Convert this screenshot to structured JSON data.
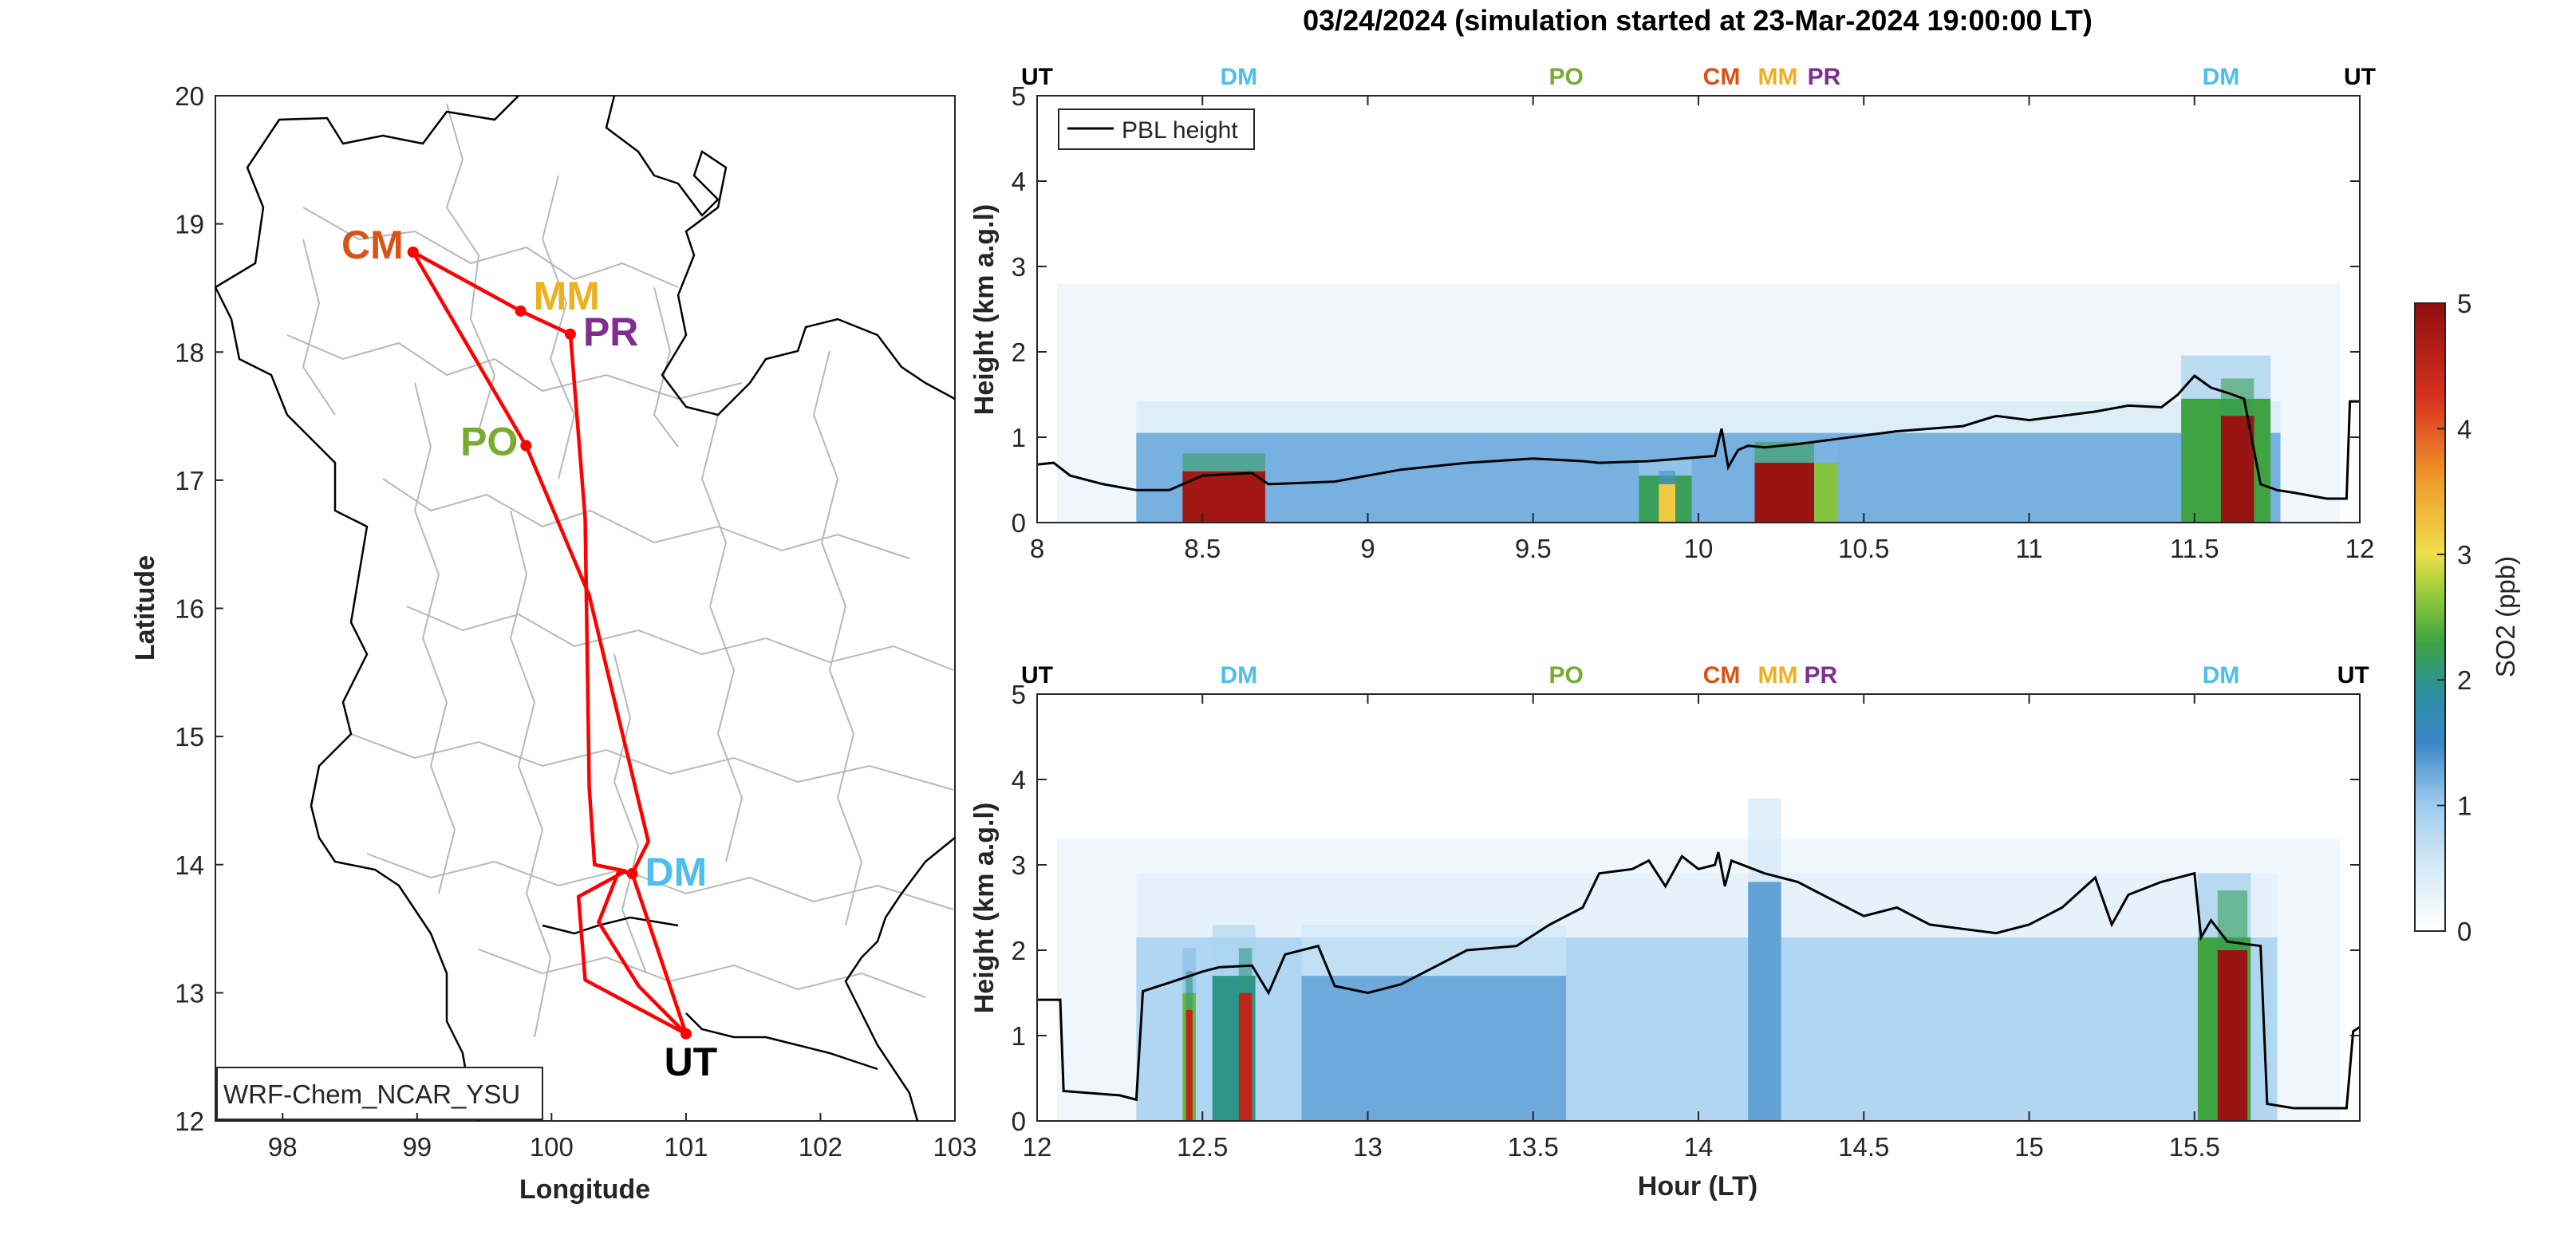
{
  "figure_title": "03/24/2024 (simulation started at 23-Mar-2024 19:00:00 LT)",
  "colors": {
    "CM": "#D95319",
    "MM": "#EDB120",
    "PR": "#7E2F8E",
    "PO": "#77AC30",
    "DM": "#4DBEEE",
    "UT": "#000000",
    "route": "#FF0000",
    "pbl": "#000000"
  },
  "chart_data": [
    {
      "type": "line",
      "panel": "map",
      "xlabel": "Longitude",
      "ylabel": "Latitude",
      "xlim": [
        97.5,
        103
      ],
      "ylim": [
        12,
        20
      ],
      "xticks": [
        98,
        99,
        100,
        101,
        102,
        103
      ],
      "yticks": [
        12,
        13,
        14,
        15,
        16,
        17,
        18,
        19,
        20
      ],
      "model_label": "WRF-Chem_NCAR_YSU",
      "stations": [
        {
          "code": "CM",
          "lon": 98.97,
          "lat": 18.78
        },
        {
          "code": "MM",
          "lon": 99.77,
          "lat": 18.32
        },
        {
          "code": "PR",
          "lon": 100.14,
          "lat": 18.14
        },
        {
          "code": "PO",
          "lon": 99.81,
          "lat": 17.27
        },
        {
          "code": "DM",
          "lon": 100.6,
          "lat": 13.93
        },
        {
          "code": "UT",
          "lon": 101.0,
          "lat": 12.68
        }
      ],
      "route": [
        [
          101.0,
          12.68
        ],
        [
          100.6,
          13.93
        ],
        [
          100.72,
          14.18
        ],
        [
          100.28,
          16.1
        ],
        [
          99.81,
          17.27
        ],
        [
          98.97,
          18.78
        ],
        [
          99.77,
          18.32
        ],
        [
          100.14,
          18.14
        ],
        [
          100.25,
          16.7
        ],
        [
          100.28,
          14.6
        ],
        [
          100.32,
          14.0
        ],
        [
          100.55,
          13.95
        ],
        [
          100.2,
          13.75
        ],
        [
          100.25,
          13.1
        ],
        [
          101.0,
          12.68
        ],
        [
          100.65,
          13.05
        ],
        [
          100.35,
          13.55
        ],
        [
          100.5,
          13.95
        ],
        [
          100.6,
          13.93
        ]
      ]
    },
    {
      "type": "heatmap",
      "panel": "top",
      "xlabel": "",
      "ylabel": "Height (km a.g.l)",
      "xlim": [
        8,
        12
      ],
      "ylim": [
        0,
        5
      ],
      "xticks": [
        8,
        8.5,
        9,
        9.5,
        10,
        10.5,
        11,
        11.5,
        12
      ],
      "yticks": [
        0,
        1,
        2,
        3,
        4,
        5
      ],
      "legend": "PBL height",
      "stop_labels": [
        {
          "code": "UT",
          "x": 8.0
        },
        {
          "code": "DM",
          "x": 8.61
        },
        {
          "code": "PO",
          "x": 9.6
        },
        {
          "code": "CM",
          "x": 10.07
        },
        {
          "code": "MM",
          "x": 10.24
        },
        {
          "code": "PR",
          "x": 10.38
        },
        {
          "code": "DM",
          "x": 11.58
        },
        {
          "code": "UT",
          "x": 12.0
        }
      ],
      "so2_blocks": [
        {
          "x0": 8.3,
          "x1": 11.76,
          "h": 1.05,
          "v": 1.2
        },
        {
          "x0": 8.44,
          "x1": 8.69,
          "h": 0.6,
          "v": 4.8
        },
        {
          "x0": 9.82,
          "x1": 9.98,
          "h": 0.55,
          "v": 2.2
        },
        {
          "x0": 9.88,
          "x1": 9.93,
          "h": 0.45,
          "v": 3.2
        },
        {
          "x0": 10.17,
          "x1": 10.35,
          "h": 0.7,
          "v": 4.9
        },
        {
          "x0": 10.35,
          "x1": 10.42,
          "h": 0.7,
          "v": 2.6
        },
        {
          "x0": 11.46,
          "x1": 11.73,
          "h": 1.45,
          "v": 2.3
        },
        {
          "x0": 11.58,
          "x1": 11.68,
          "h": 1.25,
          "v": 4.9
        }
      ],
      "pbl": {
        "x": [
          8.0,
          8.05,
          8.1,
          8.2,
          8.3,
          8.4,
          8.5,
          8.65,
          8.7,
          8.9,
          9.1,
          9.3,
          9.5,
          9.65,
          9.7,
          9.85,
          9.95,
          10.05,
          10.07,
          10.09,
          10.12,
          10.15,
          10.2,
          10.3,
          10.4,
          10.5,
          10.6,
          10.8,
          10.9,
          11.0,
          11.2,
          11.3,
          11.4,
          11.45,
          11.5,
          11.55,
          11.6,
          11.65,
          11.7,
          11.75,
          11.8,
          11.9,
          11.96,
          11.97,
          12.0
        ],
        "y": [
          0.68,
          0.7,
          0.55,
          0.45,
          0.38,
          0.38,
          0.55,
          0.58,
          0.45,
          0.48,
          0.62,
          0.7,
          0.75,
          0.72,
          0.7,
          0.72,
          0.75,
          0.78,
          1.1,
          0.65,
          0.85,
          0.9,
          0.88,
          0.92,
          0.97,
          1.02,
          1.07,
          1.13,
          1.25,
          1.2,
          1.3,
          1.37,
          1.35,
          1.5,
          1.72,
          1.58,
          1.52,
          1.45,
          0.45,
          0.38,
          0.35,
          0.28,
          0.28,
          1.42,
          1.42
        ]
      }
    },
    {
      "type": "heatmap",
      "panel": "bottom",
      "xlabel": "Hour (LT)",
      "ylabel": "Height (km a.g.l)",
      "xlim": [
        12,
        16
      ],
      "ylim": [
        0,
        5
      ],
      "xticks": [
        12,
        12.5,
        13,
        13.5,
        14,
        14.5,
        15,
        15.5
      ],
      "yticks": [
        0,
        1,
        2,
        3,
        4,
        5
      ],
      "stop_labels": [
        {
          "code": "UT",
          "x": 12.0
        },
        {
          "code": "DM",
          "x": 12.61
        },
        {
          "code": "PO",
          "x": 13.6
        },
        {
          "code": "CM",
          "x": 14.07
        },
        {
          "code": "MM",
          "x": 14.24
        },
        {
          "code": "PR",
          "x": 14.37
        },
        {
          "code": "DM",
          "x": 15.58
        },
        {
          "code": "UT",
          "x": 15.98
        }
      ],
      "so2_blocks": [
        {
          "x0": 12.3,
          "x1": 15.75,
          "h": 2.15,
          "v": 0.85
        },
        {
          "x0": 12.8,
          "x1": 13.6,
          "h": 1.7,
          "v": 1.25
        },
        {
          "x0": 14.15,
          "x1": 14.25,
          "h": 2.8,
          "v": 1.3
        },
        {
          "x0": 12.44,
          "x1": 12.48,
          "h": 1.5,
          "v": 2.5
        },
        {
          "x0": 12.45,
          "x1": 12.47,
          "h": 1.3,
          "v": 4.5
        },
        {
          "x0": 12.53,
          "x1": 12.66,
          "h": 1.7,
          "v": 2.0
        },
        {
          "x0": 12.61,
          "x1": 12.65,
          "h": 1.5,
          "v": 4.5
        },
        {
          "x0": 15.51,
          "x1": 15.67,
          "h": 2.15,
          "v": 2.3
        },
        {
          "x0": 15.57,
          "x1": 15.66,
          "h": 2.0,
          "v": 4.9
        }
      ],
      "pbl": {
        "x": [
          12.0,
          12.07,
          12.08,
          12.25,
          12.3,
          12.32,
          12.4,
          12.5,
          12.55,
          12.65,
          12.7,
          12.75,
          12.85,
          12.9,
          13.0,
          13.1,
          13.2,
          13.3,
          13.45,
          13.55,
          13.65,
          13.7,
          13.8,
          13.85,
          13.9,
          13.95,
          14.0,
          14.05,
          14.06,
          14.08,
          14.1,
          14.2,
          14.3,
          14.4,
          14.5,
          14.6,
          14.7,
          14.8,
          14.9,
          15.0,
          15.1,
          15.2,
          15.25,
          15.3,
          15.4,
          15.5,
          15.52,
          15.55,
          15.6,
          15.7,
          15.72,
          15.8,
          15.96,
          15.98,
          16.0
        ],
        "y": [
          1.42,
          1.42,
          0.35,
          0.3,
          0.25,
          1.52,
          1.62,
          1.75,
          1.8,
          1.82,
          1.5,
          1.95,
          2.05,
          1.58,
          1.5,
          1.6,
          1.8,
          2.0,
          2.05,
          2.3,
          2.5,
          2.9,
          2.95,
          3.05,
          2.75,
          3.1,
          2.95,
          3.0,
          3.15,
          2.75,
          3.05,
          2.9,
          2.8,
          2.6,
          2.4,
          2.5,
          2.3,
          2.25,
          2.2,
          2.3,
          2.5,
          2.85,
          2.3,
          2.65,
          2.8,
          2.9,
          2.15,
          2.35,
          2.1,
          2.05,
          0.2,
          0.15,
          0.15,
          1.05,
          1.1
        ]
      }
    },
    {
      "type": "heatmap",
      "panel": "colorbar",
      "ylabel": "SO2 (ppb)",
      "ylim": [
        0,
        5
      ],
      "ticks": [
        0,
        1,
        2,
        3,
        4,
        5
      ]
    }
  ]
}
